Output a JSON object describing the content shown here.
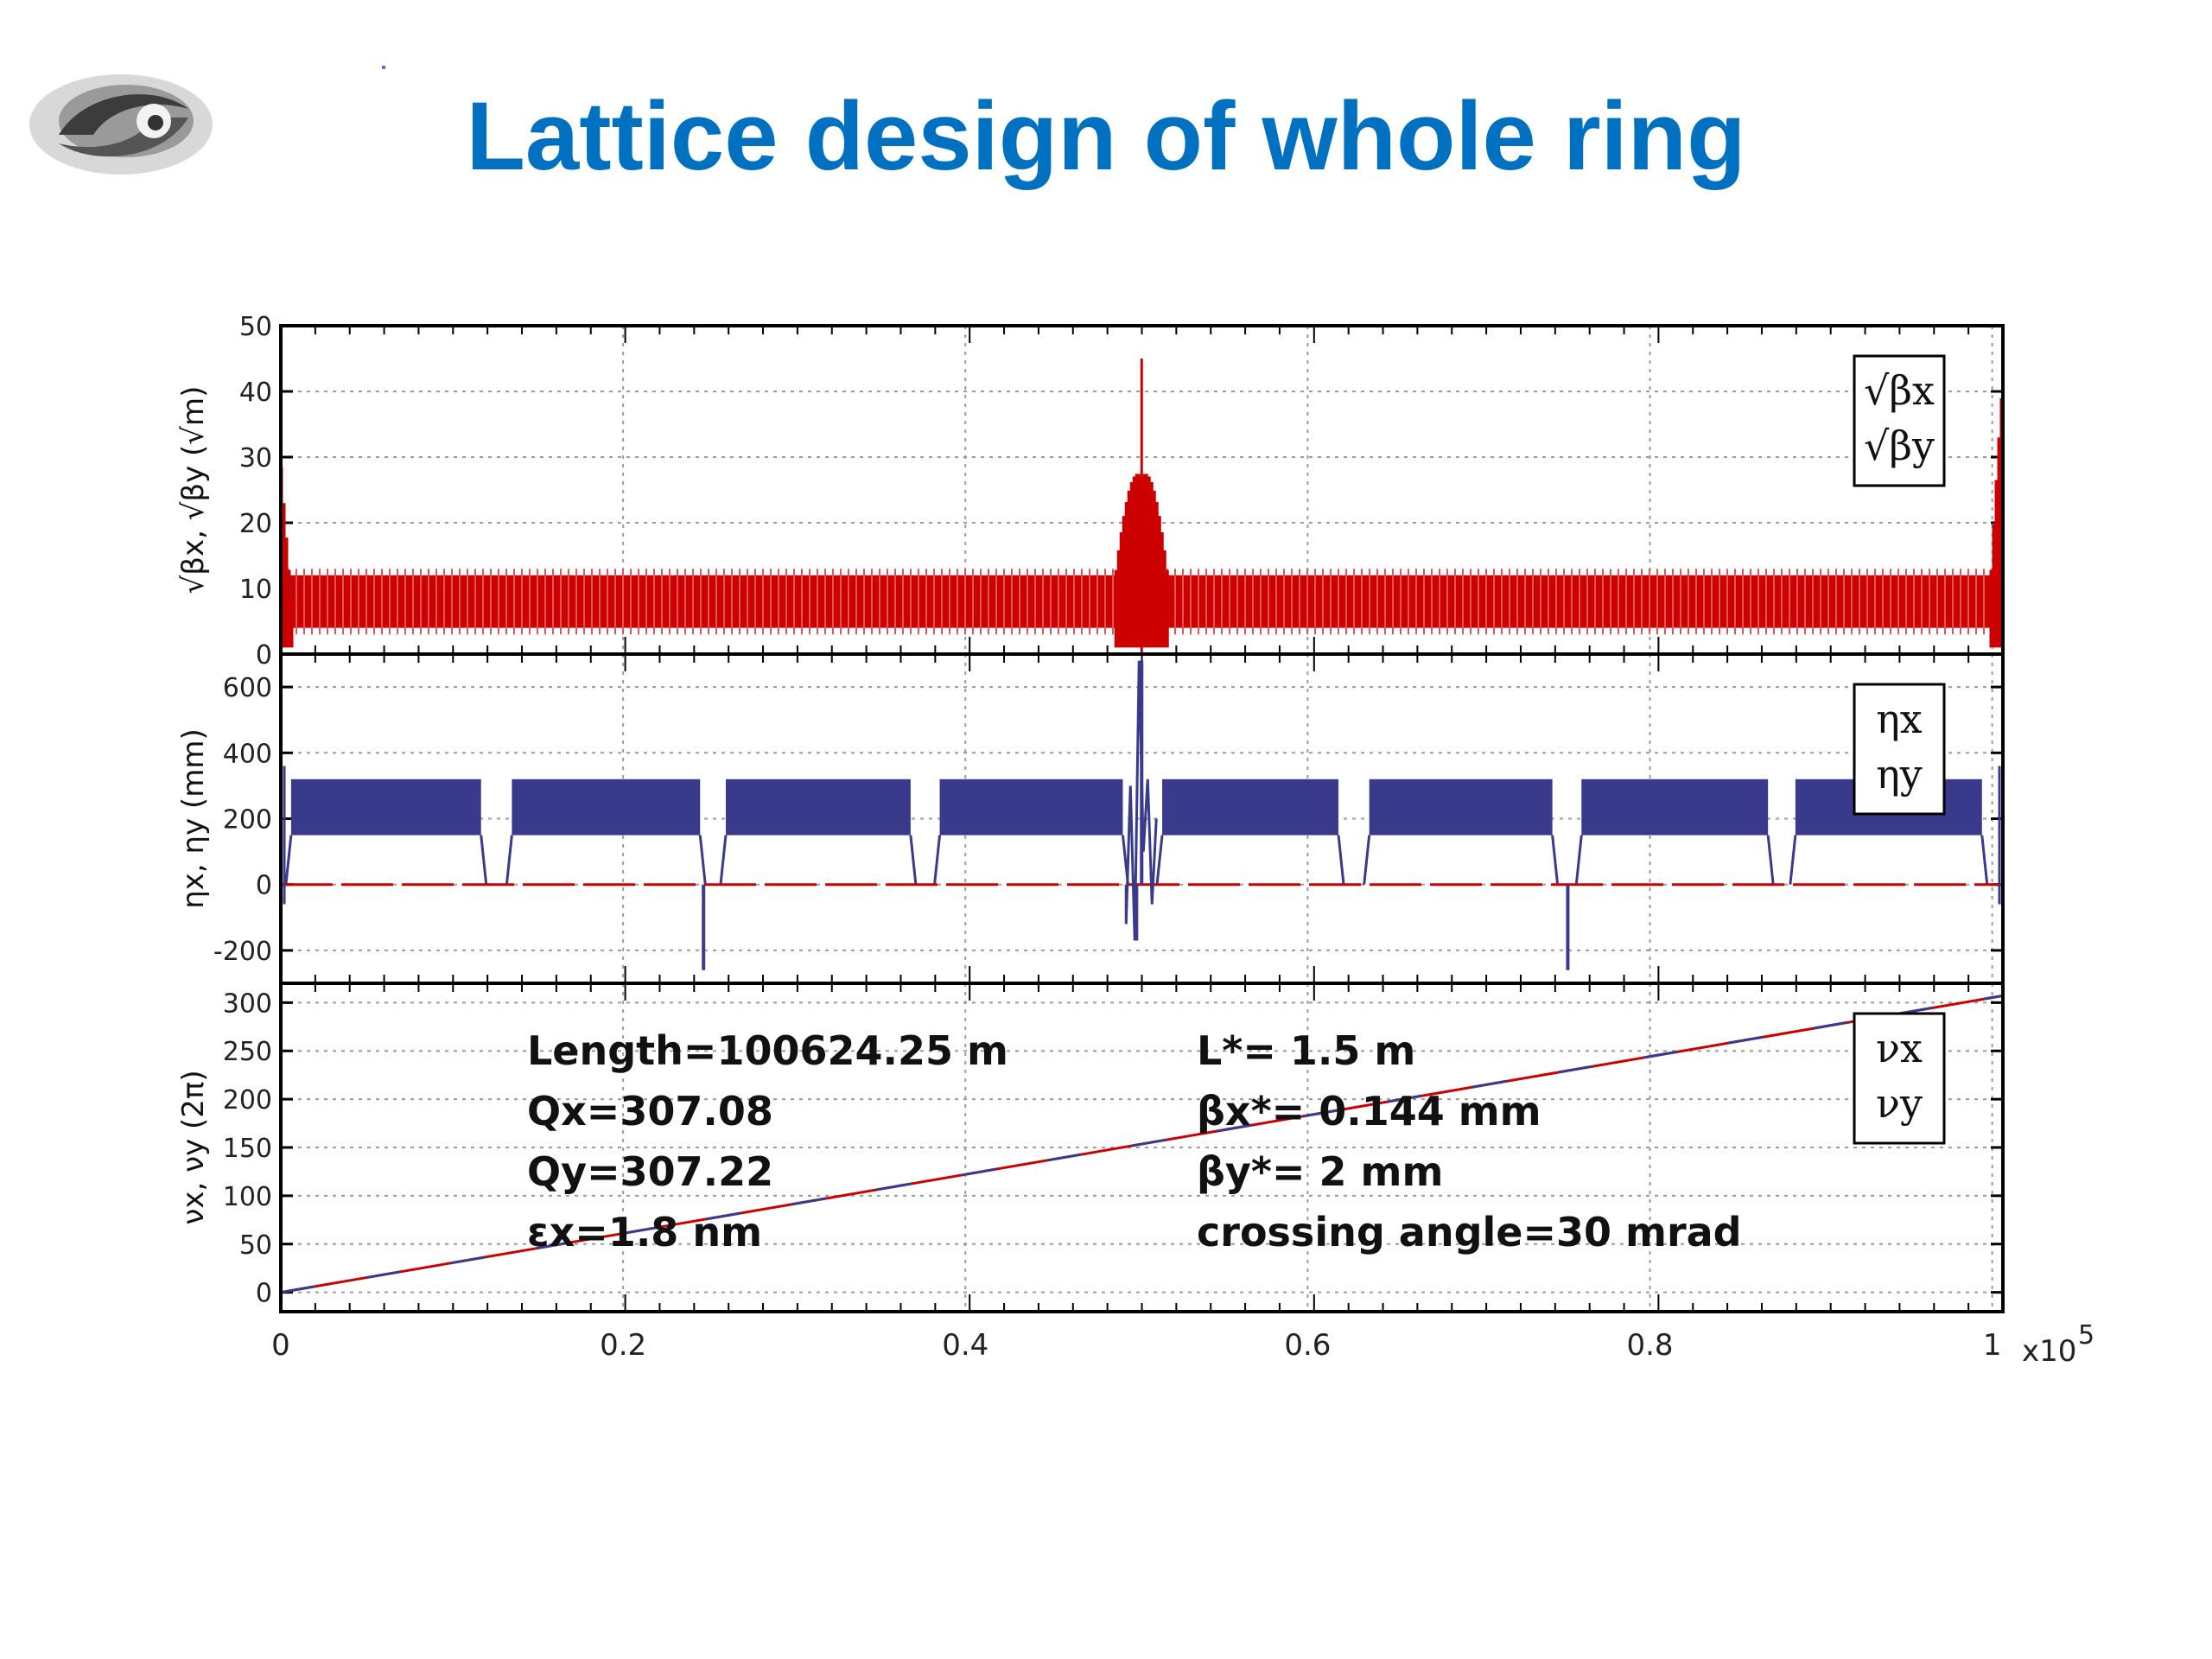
{
  "slide": {
    "title": "Lattice design of whole ring"
  },
  "colors": {
    "title": "#0070c0",
    "series_x": "#cc0000",
    "series_y": "#3a3a8c",
    "grid": "#9a9a9a"
  },
  "x_axis": {
    "ticks": [
      0,
      0.2,
      0.4,
      0.6,
      0.8,
      1
    ],
    "tick_labels": [
      "0",
      "0.2",
      "0.4",
      "0.6",
      "0.8",
      "1"
    ],
    "multiplier": "x10",
    "multiplier_exp": "5",
    "range": [
      0,
      100624.25
    ]
  },
  "annotations": {
    "left": [
      "Length=100624.25 m",
      "Qx=307.08",
      "Qy=307.22",
      "εx=1.8 nm"
    ],
    "right": [
      "L*= 1.5 m",
      "βx*= 0.144 mm",
      "βy*= 2 mm",
      "crossing angle=30 mrad"
    ]
  },
  "chart_data": [
    {
      "type": "line",
      "panel": "beta",
      "ylabel": "√βx, √βy (√m)",
      "ylim": [
        0,
        50
      ],
      "yticks": [
        0,
        10,
        20,
        30,
        40,
        50
      ],
      "grid": true,
      "legend": {
        "position": "top-right",
        "entries": [
          "√βx",
          "√βy"
        ]
      },
      "series": [
        {
          "name": "√βx",
          "color": "#cc0000",
          "description_values": {
            "arc_band": [
              4,
              12
            ],
            "ip_peaks": [
              {
                "x": 0,
                "y": 32
              },
              {
                "x": 50300,
                "y": 45
              },
              {
                "x": 100624,
                "y": 45
              }
            ]
          }
        },
        {
          "name": "√βy",
          "color": "#3a3a8c",
          "description_values": {
            "arc_band": [
              4,
              12
            ]
          }
        }
      ]
    },
    {
      "type": "line",
      "panel": "dispersion",
      "ylabel": "ηx, ηy (mm)",
      "ylim": [
        -300,
        700
      ],
      "yticks": [
        -200,
        0,
        200,
        400,
        600
      ],
      "grid": true,
      "legend": {
        "position": "top-right",
        "entries": [
          "ηx",
          "ηy"
        ]
      },
      "series": [
        {
          "name": "ηx",
          "color": "#3a3a8c",
          "arc_segments": [
            [
              600,
              11700
            ],
            [
              13500,
              24500
            ],
            [
              26000,
              36800
            ],
            [
              38500,
              49200
            ],
            [
              51500,
              61800
            ],
            [
              63600,
              74300
            ],
            [
              76000,
              86900
            ],
            [
              88500,
              99400
            ]
          ],
          "arc_band": [
            150,
            320
          ],
          "spikes": [
            {
              "x": 50300,
              "y": 680
            },
            {
              "x": 50000,
              "y": -170
            },
            {
              "x": 24700,
              "y": -260
            },
            {
              "x": 75200,
              "y": -260
            }
          ]
        },
        {
          "name": "ηy",
          "color": "#cc0000",
          "values_const": 0
        }
      ]
    },
    {
      "type": "line",
      "panel": "tune",
      "ylabel": "νx, νy (2π)",
      "ylim": [
        -20,
        320
      ],
      "yticks": [
        0,
        50,
        100,
        150,
        200,
        250,
        300
      ],
      "grid": true,
      "legend": {
        "position": "top-right",
        "entries": [
          "νx",
          "νy"
        ]
      },
      "series": [
        {
          "name": "νx",
          "color": "#cc0000",
          "x": [
            0,
            100624.25
          ],
          "y": [
            0,
            307.08
          ]
        },
        {
          "name": "νy",
          "color": "#3a3a8c",
          "x": [
            0,
            100624.25
          ],
          "y": [
            0,
            307.22
          ]
        }
      ]
    }
  ]
}
